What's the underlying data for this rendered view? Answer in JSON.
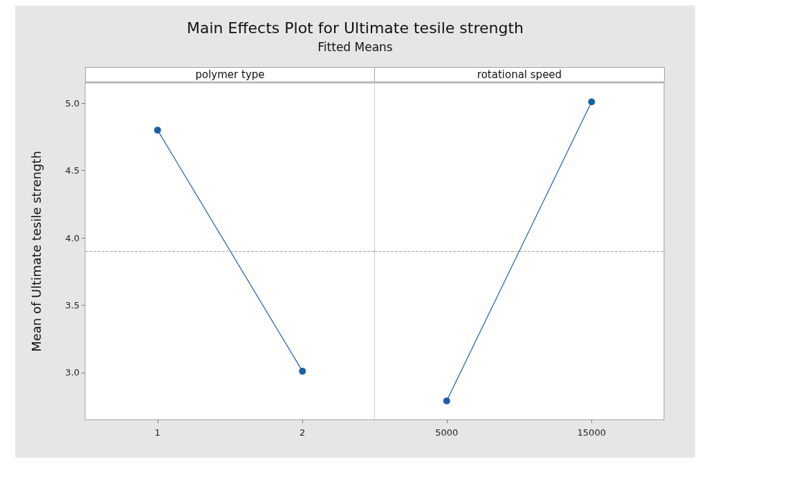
{
  "chart_data": [
    {
      "type": "line",
      "title": "Main Effects Plot for Ultimate tesile strength",
      "subtitle": "Fitted Means",
      "xlabel": "polymer type",
      "ylabel": "Mean of Ultimate tesile strength",
      "categories": [
        "1",
        "2"
      ],
      "series": [
        {
          "color": "#1b5eab",
          "values": [
            4.8,
            3.01
          ]
        }
      ],
      "ylim": [
        2.65,
        5.15
      ],
      "yticks": [
        {
          "value": 3,
          "label": "3.0"
        },
        {
          "value": 3.5,
          "label": "3.5"
        },
        {
          "value": 4,
          "label": "4.0"
        },
        {
          "value": 4.5,
          "label": "4.5"
        },
        {
          "value": 5,
          "label": "5.0"
        }
      ],
      "ref_lines": [
        {
          "axis": "y",
          "value": 3.9,
          "color": "#a0a0a0",
          "line_style": "dashed"
        }
      ],
      "marker": "circle",
      "line_style": "solid"
    },
    {
      "type": "line",
      "xlabel": "rotational speed",
      "categories": [
        "5000",
        "15000"
      ],
      "series": [
        {
          "color": "#1b5eab",
          "values": [
            2.79,
            5.01
          ]
        }
      ],
      "ylim": [
        2.65,
        5.15
      ],
      "tick_labels": "x",
      "ref_lines": [
        {
          "axis": "y",
          "value": 3.9,
          "color": "#a0a0a0",
          "line_style": "dashed"
        }
      ],
      "marker": "circle",
      "line_style": "solid"
    }
  ]
}
